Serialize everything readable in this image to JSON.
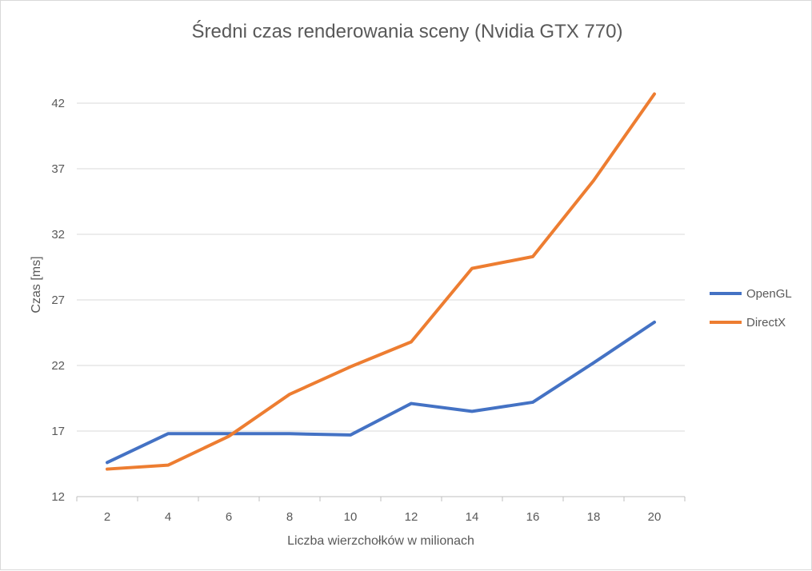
{
  "chart_data": {
    "type": "line",
    "title": "Średni czas renderowania sceny (Nvidia GTX 770)",
    "xlabel": "Liczba wierzchołków w milionach",
    "ylabel": "Czas  [ms]",
    "categories": [
      "2",
      "4",
      "6",
      "8",
      "10",
      "12",
      "14",
      "16",
      "18",
      "20"
    ],
    "y_ticks": [
      "12",
      "17",
      "22",
      "27",
      "32",
      "37",
      "42"
    ],
    "ylim": [
      12,
      42
    ],
    "grid": true,
    "legend_position": "right",
    "series": [
      {
        "name": "OpenGL",
        "color": "#4472C4",
        "values": [
          14.6,
          16.8,
          16.8,
          16.8,
          16.7,
          19.1,
          18.5,
          19.2,
          22.2,
          25.3
        ]
      },
      {
        "name": "DirectX",
        "color": "#ED7D31",
        "values": [
          14.1,
          14.4,
          16.6,
          19.8,
          21.9,
          23.8,
          29.4,
          30.3,
          36.1,
          42.7
        ]
      }
    ]
  }
}
